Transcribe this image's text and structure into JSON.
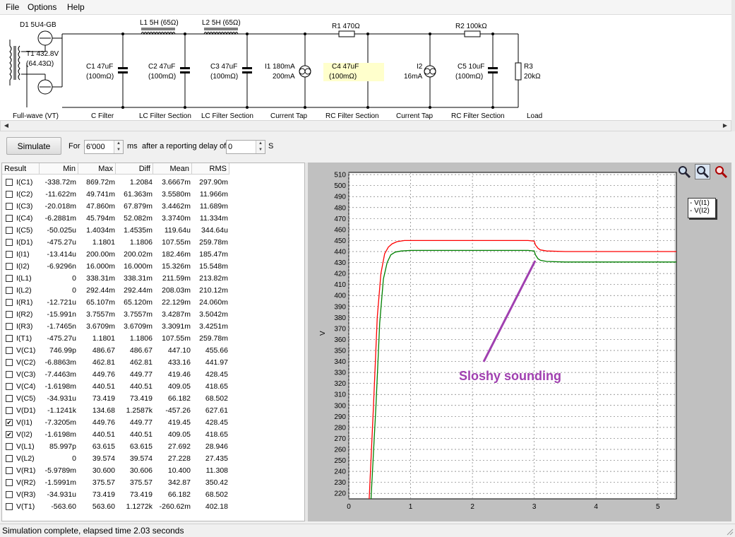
{
  "menu": [
    "File",
    "Options",
    "Help"
  ],
  "schematic": {
    "components": {
      "d1": "D1 5U4-GB",
      "t1_a": "T1 432.8V",
      "t1_b": "(64.43Ω)",
      "l1": "L1 5H (65Ω)",
      "l2": "L2 5H (65Ω)",
      "r1": "R1 470Ω",
      "r2": "R2 100kΩ",
      "c1_a": "C1 47uF",
      "c1_b": "(100mΩ)",
      "c2_a": "C2 47uF",
      "c2_b": "(100mΩ)",
      "c3_a": "C3 47uF",
      "c3_b": "(100mΩ)",
      "i1_a": "I1 180mA",
      "i1_b": "200mA",
      "c4_a": "C4 47uF",
      "c4_b": "(100mΩ)",
      "i2_a": "I2",
      "i2_b": "16mA",
      "c5_a": "C5 10uF",
      "c5_b": "(100mΩ)",
      "r3_a": "R3",
      "r3_b": "20kΩ"
    },
    "sections": [
      "Full-wave (VT)",
      "C Filter",
      "LC Filter Section",
      "LC Filter Section",
      "Current Tap",
      "RC Filter Section",
      "Current Tap",
      "RC Filter Section",
      "Load"
    ]
  },
  "toolbar": {
    "simulate_label": "Simulate",
    "for_label": "For",
    "duration_value": "6'000",
    "ms_label": "ms",
    "delay_label": "after a reporting delay of",
    "delay_value": "0",
    "s_label": "S"
  },
  "table": {
    "columns": [
      "Result",
      "Min",
      "Max",
      "Diff",
      "Mean",
      "RMS"
    ],
    "rows": [
      {
        "checked": false,
        "name": "I(C1)",
        "min": "-338.72m",
        "max": "869.72m",
        "diff": "1.2084",
        "mean": "3.6667m",
        "rms": "297.90m"
      },
      {
        "checked": false,
        "name": "I(C2)",
        "min": "-11.622m",
        "max": "49.741m",
        "diff": "61.363m",
        "mean": "3.5580m",
        "rms": "11.966m"
      },
      {
        "checked": false,
        "name": "I(C3)",
        "min": "-20.018m",
        "max": "47.860m",
        "diff": "67.879m",
        "mean": "3.4462m",
        "rms": "11.689m"
      },
      {
        "checked": false,
        "name": "I(C4)",
        "min": "-6.2881m",
        "max": "45.794m",
        "diff": "52.082m",
        "mean": "3.3740m",
        "rms": "11.334m"
      },
      {
        "checked": false,
        "name": "I(C5)",
        "min": "-50.025u",
        "max": "1.4034m",
        "diff": "1.4535m",
        "mean": "119.64u",
        "rms": "344.64u"
      },
      {
        "checked": false,
        "name": "I(D1)",
        "min": "-475.27u",
        "max": "1.1801",
        "diff": "1.1806",
        "mean": "107.55m",
        "rms": "259.78m"
      },
      {
        "checked": false,
        "name": "I(I1)",
        "min": "-13.414u",
        "max": "200.00m",
        "diff": "200.02m",
        "mean": "182.46m",
        "rms": "185.47m"
      },
      {
        "checked": false,
        "name": "I(I2)",
        "min": "-6.9296n",
        "max": "16.000m",
        "diff": "16.000m",
        "mean": "15.326m",
        "rms": "15.548m"
      },
      {
        "checked": false,
        "name": "I(L1)",
        "min": "0",
        "max": "338.31m",
        "diff": "338.31m",
        "mean": "211.59m",
        "rms": "213.82m"
      },
      {
        "checked": false,
        "name": "I(L2)",
        "min": "0",
        "max": "292.44m",
        "diff": "292.44m",
        "mean": "208.03m",
        "rms": "210.12m"
      },
      {
        "checked": false,
        "name": "I(R1)",
        "min": "-12.721u",
        "max": "65.107m",
        "diff": "65.120m",
        "mean": "22.129m",
        "rms": "24.060m"
      },
      {
        "checked": false,
        "name": "I(R2)",
        "min": "-15.991n",
        "max": "3.7557m",
        "diff": "3.7557m",
        "mean": "3.4287m",
        "rms": "3.5042m"
      },
      {
        "checked": false,
        "name": "I(R3)",
        "min": "-1.7465n",
        "max": "3.6709m",
        "diff": "3.6709m",
        "mean": "3.3091m",
        "rms": "3.4251m"
      },
      {
        "checked": false,
        "name": "I(T1)",
        "min": "-475.27u",
        "max": "1.1801",
        "diff": "1.1806",
        "mean": "107.55m",
        "rms": "259.78m"
      },
      {
        "checked": false,
        "name": "V(C1)",
        "min": "746.99p",
        "max": "486.67",
        "diff": "486.67",
        "mean": "447.10",
        "rms": "455.66"
      },
      {
        "checked": false,
        "name": "V(C2)",
        "min": "-6.8863m",
        "max": "462.81",
        "diff": "462.81",
        "mean": "433.16",
        "rms": "441.97"
      },
      {
        "checked": false,
        "name": "V(C3)",
        "min": "-7.4463m",
        "max": "449.76",
        "diff": "449.77",
        "mean": "419.46",
        "rms": "428.45"
      },
      {
        "checked": false,
        "name": "V(C4)",
        "min": "-1.6198m",
        "max": "440.51",
        "diff": "440.51",
        "mean": "409.05",
        "rms": "418.65"
      },
      {
        "checked": false,
        "name": "V(C5)",
        "min": "-34.931u",
        "max": "73.419",
        "diff": "73.419",
        "mean": "66.182",
        "rms": "68.502"
      },
      {
        "checked": false,
        "name": "V(D1)",
        "min": "-1.1241k",
        "max": "134.68",
        "diff": "1.2587k",
        "mean": "-457.26",
        "rms": "627.61"
      },
      {
        "checked": true,
        "name": "V(I1)",
        "min": "-7.3205m",
        "max": "449.76",
        "diff": "449.77",
        "mean": "419.45",
        "rms": "428.45"
      },
      {
        "checked": true,
        "name": "V(I2)",
        "min": "-1.6198m",
        "max": "440.51",
        "diff": "440.51",
        "mean": "409.05",
        "rms": "418.65"
      },
      {
        "checked": false,
        "name": "V(L1)",
        "min": "85.997p",
        "max": "63.615",
        "diff": "63.615",
        "mean": "27.692",
        "rms": "28.946"
      },
      {
        "checked": false,
        "name": "V(L2)",
        "min": "0",
        "max": "39.574",
        "diff": "39.574",
        "mean": "27.228",
        "rms": "27.435"
      },
      {
        "checked": false,
        "name": "V(R1)",
        "min": "-5.9789m",
        "max": "30.600",
        "diff": "30.606",
        "mean": "10.400",
        "rms": "11.308"
      },
      {
        "checked": false,
        "name": "V(R2)",
        "min": "-1.5991m",
        "max": "375.57",
        "diff": "375.57",
        "mean": "342.87",
        "rms": "350.42"
      },
      {
        "checked": false,
        "name": "V(R3)",
        "min": "-34.931u",
        "max": "73.419",
        "diff": "73.419",
        "mean": "66.182",
        "rms": "68.502"
      },
      {
        "checked": false,
        "name": "V(T1)",
        "min": "-563.60",
        "max": "563.60",
        "diff": "1.1272k",
        "mean": "-260.62m",
        "rms": "402.18"
      }
    ]
  },
  "chart_data": {
    "type": "line",
    "xlabel": "",
    "ylabel": "V",
    "xlim": [
      0,
      5.3
    ],
    "ylim": [
      215,
      512
    ],
    "x_ticks": [
      0,
      1,
      2,
      3,
      4,
      5
    ],
    "y_ticks": [
      220,
      230,
      240,
      250,
      260,
      270,
      280,
      290,
      300,
      310,
      320,
      330,
      340,
      350,
      360,
      370,
      380,
      390,
      400,
      410,
      420,
      430,
      440,
      450,
      460,
      470,
      480,
      490,
      500,
      510
    ],
    "grid": true,
    "legend": [
      "- V(I1)",
      "- V(I2)"
    ],
    "legend_position": "top-right",
    "annotation": "Sloshy sounding",
    "series": [
      {
        "name": "V(I1)",
        "color": "#ff0000",
        "x": [
          0.33,
          0.4,
          0.46,
          0.52,
          0.58,
          0.64,
          0.7,
          0.78,
          0.9,
          1.1,
          2.0,
          2.9,
          3.0,
          3.02,
          3.06,
          3.1,
          3.2,
          3.5,
          4.5,
          5.3
        ],
        "y": [
          215,
          300,
          380,
          420,
          438,
          444,
          447,
          449,
          450,
          450,
          450,
          450,
          449.5,
          446,
          443,
          441.5,
          440.5,
          440,
          440,
          440
        ]
      },
      {
        "name": "V(I2)",
        "color": "#008000",
        "x": [
          0.36,
          0.44,
          0.5,
          0.56,
          0.62,
          0.68,
          0.75,
          0.85,
          1.0,
          1.2,
          2.0,
          2.9,
          3.0,
          3.02,
          3.06,
          3.1,
          3.2,
          3.5,
          4.5,
          5.3
        ],
        "y": [
          215,
          300,
          375,
          415,
          430,
          437,
          439.5,
          440.5,
          441,
          441,
          441,
          441,
          440.5,
          437,
          433.5,
          432,
          431,
          430.5,
          430.5,
          430.5
        ]
      }
    ]
  },
  "status": {
    "text": "Simulation complete, elapsed time 2.03 seconds"
  }
}
